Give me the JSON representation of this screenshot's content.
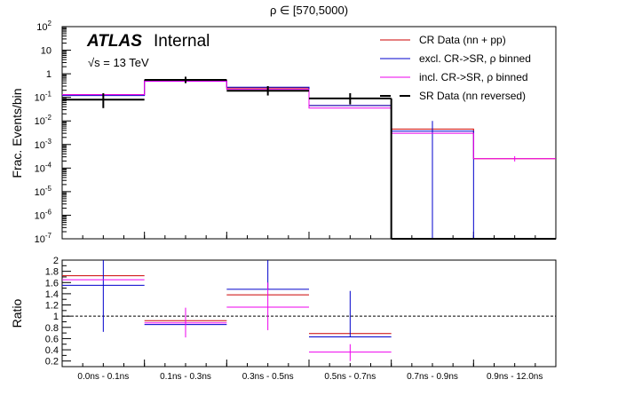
{
  "chart_data": {
    "type": "histogram",
    "title": "ρ ∈ [570,5000)",
    "atlas_bold": "ATLAS",
    "atlas_label": "Internal",
    "energy_label": "√s = 13 TeV",
    "categories": [
      "0.0ns - 0.1ns",
      "0.1ns - 0.3ns",
      "0.3ns - 0.5ns",
      "0.5ns - 0.7ns",
      "0.7ns - 0.9ns",
      "0.9ns - 12.0ns"
    ],
    "colors": {
      "cr_data": "#cc0000",
      "excl": "#0000cc",
      "incl": "#ee00ee",
      "sr_data": "#000000"
    },
    "upper": {
      "ylabel": "Frac. Events/bin",
      "yscale": "log",
      "ylim": [
        1e-07,
        100
      ],
      "yticks": [
        {
          "v": 1e-07,
          "base": "10",
          "exp": "-7"
        },
        {
          "v": 1e-06,
          "base": "10",
          "exp": "-6"
        },
        {
          "v": 1e-05,
          "base": "10",
          "exp": "-5"
        },
        {
          "v": 0.0001,
          "base": "10",
          "exp": "-4"
        },
        {
          "v": 0.001,
          "base": "10",
          "exp": "-3"
        },
        {
          "v": 0.01,
          "base": "10",
          "exp": "-2"
        },
        {
          "v": 0.1,
          "base": "10",
          "exp": "-1"
        },
        {
          "v": 1,
          "base": "1",
          "exp": ""
        },
        {
          "v": 10,
          "base": "10",
          "exp": ""
        },
        {
          "v": 100,
          "base": "10",
          "exp": "2"
        }
      ],
      "series": [
        {
          "name": "CR Data (nn + pp)",
          "key": "cr_data",
          "style": "hist",
          "values": [
            0.13,
            0.52,
            0.25,
            0.045,
            0.0045,
            0.00025
          ]
        },
        {
          "name": "excl. CR->SR, ρ binned",
          "key": "excl",
          "style": "hist",
          "values": [
            0.12,
            0.5,
            0.27,
            0.045,
            0.0037,
            1e-07
          ],
          "err_lo": [
            null,
            null,
            null,
            null,
            1e-07,
            null
          ],
          "err_hi": [
            null,
            null,
            null,
            null,
            0.01,
            null
          ]
        },
        {
          "name": "incl. CR->SR, ρ binned",
          "key": "incl",
          "style": "hist",
          "values": [
            0.13,
            0.48,
            0.22,
            0.035,
            0.003,
            0.00025
          ],
          "err_lo": [
            null,
            null,
            null,
            null,
            null,
            0.00019
          ],
          "err_hi": [
            null,
            null,
            null,
            null,
            null,
            0.00032
          ]
        },
        {
          "name": "SR Data (nn reversed)",
          "key": "sr_data",
          "style": "data",
          "values": [
            0.08,
            0.55,
            0.19,
            0.09,
            1e-07,
            1e-07
          ],
          "err_lo": [
            0.035,
            0.4,
            0.12,
            0.05,
            null,
            null
          ],
          "err_hi": [
            0.15,
            0.75,
            0.3,
            0.15,
            null,
            null
          ]
        }
      ]
    },
    "lower": {
      "ylabel": "Ratio",
      "ylim": [
        0.1,
        2.0
      ],
      "yticks": [
        "0.2",
        "0.4",
        "0.6",
        "0.8",
        "1",
        "1.2",
        "1.4",
        "1.6",
        "1.8",
        "2"
      ],
      "reference_line": 1.0,
      "series": [
        {
          "key": "cr_data",
          "values": [
            1.72,
            0.92,
            1.38,
            0.69,
            null,
            null
          ]
        },
        {
          "key": "excl",
          "values": [
            1.55,
            0.85,
            1.48,
            0.63,
            null,
            null
          ],
          "err_lo": [
            0.72,
            null,
            null,
            null,
            null,
            null
          ],
          "err_hi": [
            2.0,
            null,
            2.0,
            1.45,
            null,
            null
          ]
        },
        {
          "key": "incl",
          "values": [
            1.65,
            0.88,
            1.16,
            0.36,
            null,
            null
          ],
          "err_lo": [
            null,
            0.62,
            0.75,
            0.2,
            null,
            null
          ],
          "err_hi": [
            null,
            1.15,
            1.6,
            0.5,
            null,
            null
          ]
        }
      ]
    }
  }
}
